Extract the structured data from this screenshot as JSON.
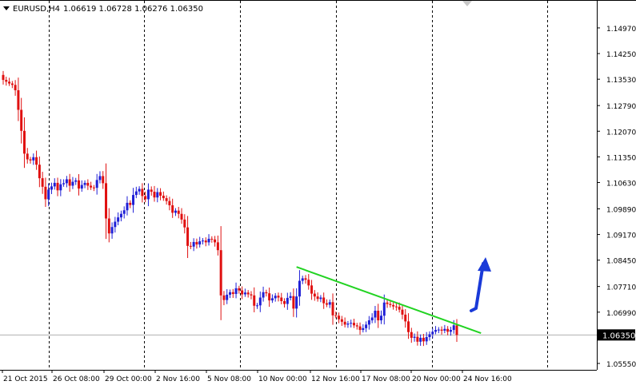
{
  "header": {
    "symbol": "EURUSD,H4",
    "ohlc": "1.06619 1.06728 1.06276 1.06350"
  },
  "price_axis": {
    "labels": [
      "1.14970",
      "1.14250",
      "1.13530",
      "1.12790",
      "1.12070",
      "1.11350",
      "1.10630",
      "1.09890",
      "1.09170",
      "1.08450",
      "1.07710",
      "1.06990",
      "1.05550"
    ],
    "current_price": "1.06350"
  },
  "time_axis": {
    "labels": [
      "21 Oct 2015",
      "26 Oct 08:00",
      "29 Oct 00:00",
      "2 Nov 16:00",
      "5 Nov 08:00",
      "10 Nov 00:00",
      "12 Nov 16:00",
      "17 Nov 08:00",
      "20 Nov 00:00",
      "24 Nov 16:00"
    ]
  },
  "colors": {
    "bull": "#1f1fd6",
    "bear": "#e01010",
    "trendline": "#22d322",
    "arrow": "#1a3ad8",
    "grid": "#000000",
    "bid_line": "#b0b0b0"
  },
  "chart_data": {
    "type": "candlestick",
    "symbol": "EURUSD",
    "timeframe": "H4",
    "ylim": [
      1.0555,
      1.1535
    ],
    "closes": [
      1.1351,
      1.1346,
      1.1341,
      1.1337,
      1.1322,
      1.1267,
      1.1208,
      1.1144,
      1.1128,
      1.1125,
      1.1134,
      1.1113,
      1.1075,
      1.1051,
      1.1016,
      1.1043,
      1.1052,
      1.1062,
      1.1041,
      1.1058,
      1.1061,
      1.1072,
      1.1054,
      1.1065,
      1.1069,
      1.1046,
      1.1056,
      1.1062,
      1.1054,
      1.1049,
      1.1048,
      1.107,
      1.1081,
      1.1061,
      1.0962,
      1.092,
      1.0938,
      1.0953,
      1.0965,
      1.0975,
      1.0985,
      1.1006,
      1.1,
      1.1028,
      1.1038,
      1.1045,
      1.1025,
      1.1016,
      1.1043,
      1.1037,
      1.1021,
      1.1036,
      1.1026,
      1.1019,
      1.1011,
      1.0999,
      1.0978,
      1.0984,
      1.0975,
      1.0959,
      1.0937,
      1.0885,
      1.0883,
      1.0896,
      1.0889,
      1.0898,
      1.09,
      1.0895,
      1.0905,
      1.0903,
      1.0895,
      1.0873,
      1.0746,
      1.0733,
      1.0748,
      1.0755,
      1.075,
      1.0766,
      1.076,
      1.0749,
      1.0754,
      1.0749,
      1.0746,
      1.0717,
      1.0718,
      1.074,
      1.0755,
      1.0752,
      1.0732,
      1.0738,
      1.0745,
      1.074,
      1.073,
      1.0722,
      1.0739,
      1.0744,
      1.0709,
      1.0743,
      1.0787,
      1.0794,
      1.079,
      1.0774,
      1.0751,
      1.0743,
      1.0736,
      1.074,
      1.0724,
      1.072,
      1.0727,
      1.069,
      1.0689,
      1.0679,
      1.0672,
      1.0664,
      1.0667,
      1.0669,
      1.0662,
      1.0659,
      1.0649,
      1.0654,
      1.0664,
      1.0676,
      1.0684,
      1.0703,
      1.0676,
      1.0689,
      1.0726,
      1.0722,
      1.0719,
      1.0715,
      1.0714,
      1.0706,
      1.0692,
      1.0673,
      1.0643,
      1.0627,
      1.063,
      1.0616,
      1.0627,
      1.0617,
      1.0629,
      1.0637,
      1.0644,
      1.0649,
      1.065,
      1.0647,
      1.0652,
      1.0644,
      1.0649,
      1.0662,
      1.0635
    ],
    "annotations": [
      {
        "type": "trendline",
        "from": {
          "bar": 97,
          "price": 1.0826
        },
        "to": {
          "bar": 158,
          "price": 1.064
        }
      },
      {
        "type": "arrow",
        "direction": "up"
      }
    ],
    "grid": "vertical dashed lines at time labels"
  }
}
